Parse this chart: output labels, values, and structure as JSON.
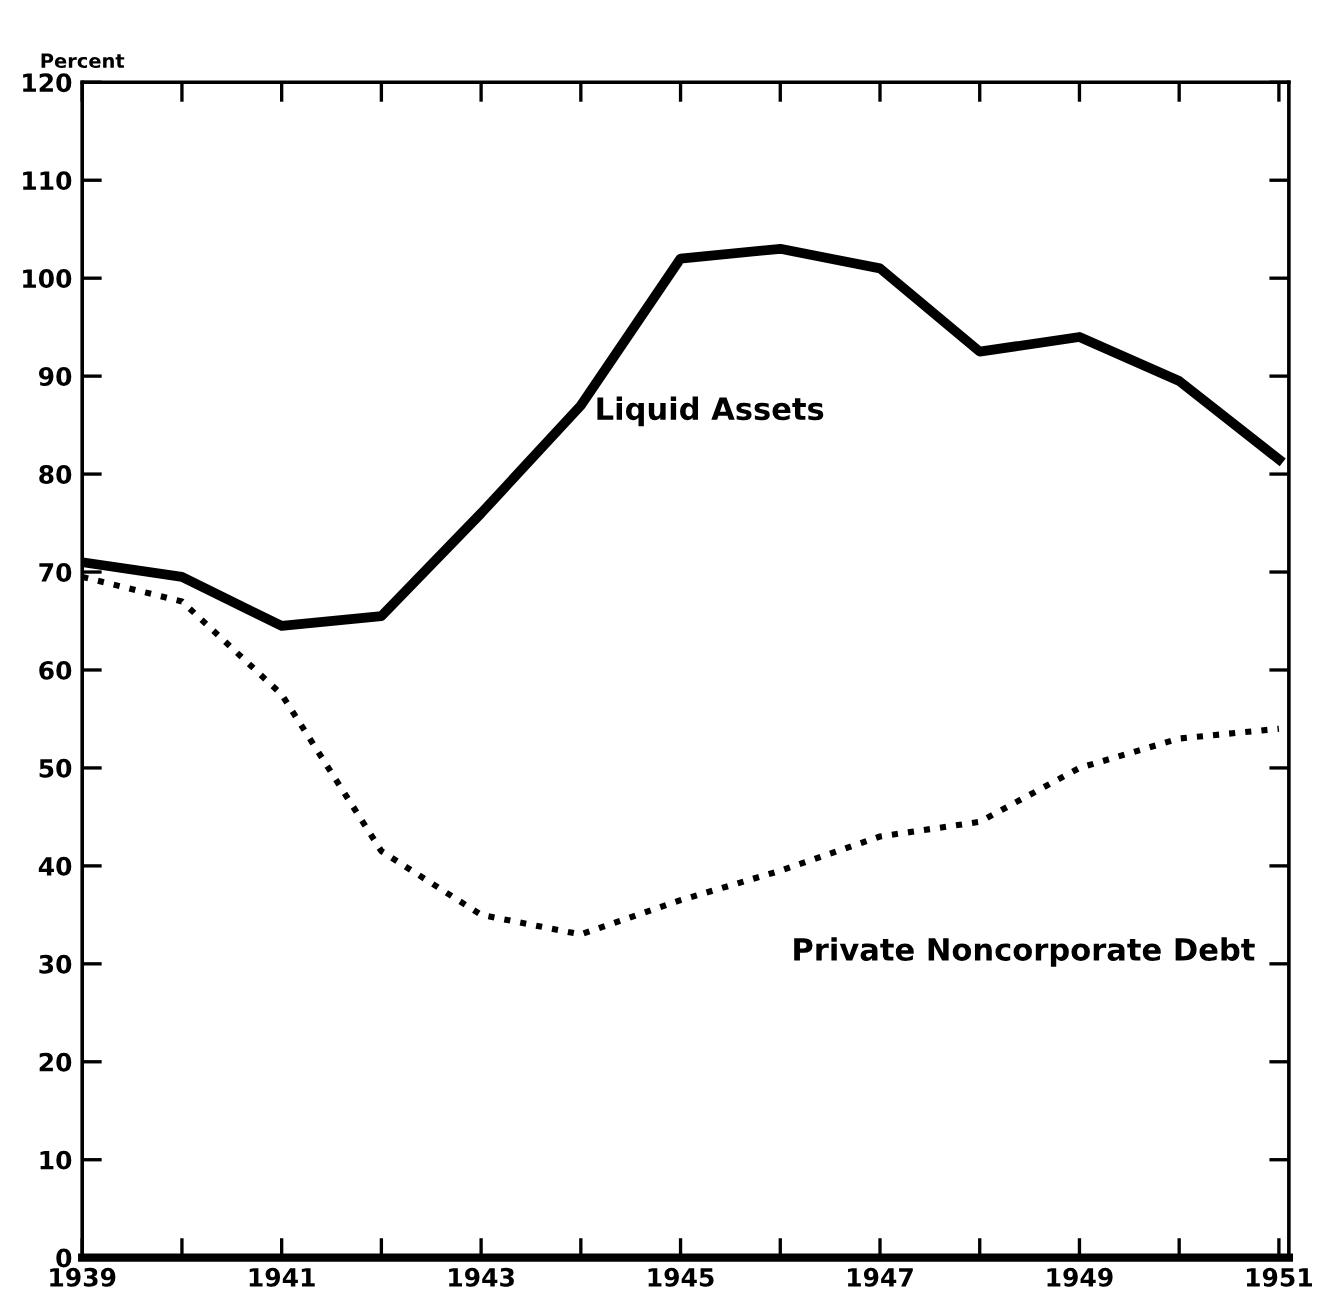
{
  "chart_data": {
    "type": "line",
    "ylabel": "Percent",
    "x": [
      1939,
      1940,
      1941,
      1942,
      1943,
      1944,
      1945,
      1946,
      1947,
      1948,
      1949,
      1950,
      1951
    ],
    "series": [
      {
        "color": "#000000",
        "line_style": "solid",
        "values": [
          71,
          69.5,
          64.5,
          65.5,
          76,
          87,
          102,
          103,
          101,
          92.5,
          94,
          89.5,
          81.5
        ]
      },
      {
        "color": "#000000",
        "line_style": "dotted",
        "values": [
          69.5,
          67,
          57.5,
          41.5,
          35,
          33,
          36.5,
          39.5,
          43,
          44.5,
          50,
          53,
          54
        ]
      }
    ],
    "annotations": [
      "Liquid Assets",
      "Private Noncorporate Debt"
    ],
    "xlim": [
      1939,
      1951.1
    ],
    "ylim": [
      0,
      120
    ],
    "xticks": [
      1939,
      {
        "value": 1940,
        "label": null
      },
      1941,
      {
        "value": 1942,
        "label": null
      },
      1943,
      {
        "value": 1944,
        "label": null
      },
      1945,
      {
        "value": 1946,
        "label": null
      },
      1947,
      {
        "value": 1948,
        "label": null
      },
      1949,
      {
        "value": 1950,
        "label": null
      },
      1951
    ],
    "yticks": [
      0,
      10,
      20,
      30,
      40,
      50,
      60,
      70,
      80,
      90,
      100,
      110,
      120
    ],
    "grid": false,
    "legend": false,
    "marker": "none"
  }
}
